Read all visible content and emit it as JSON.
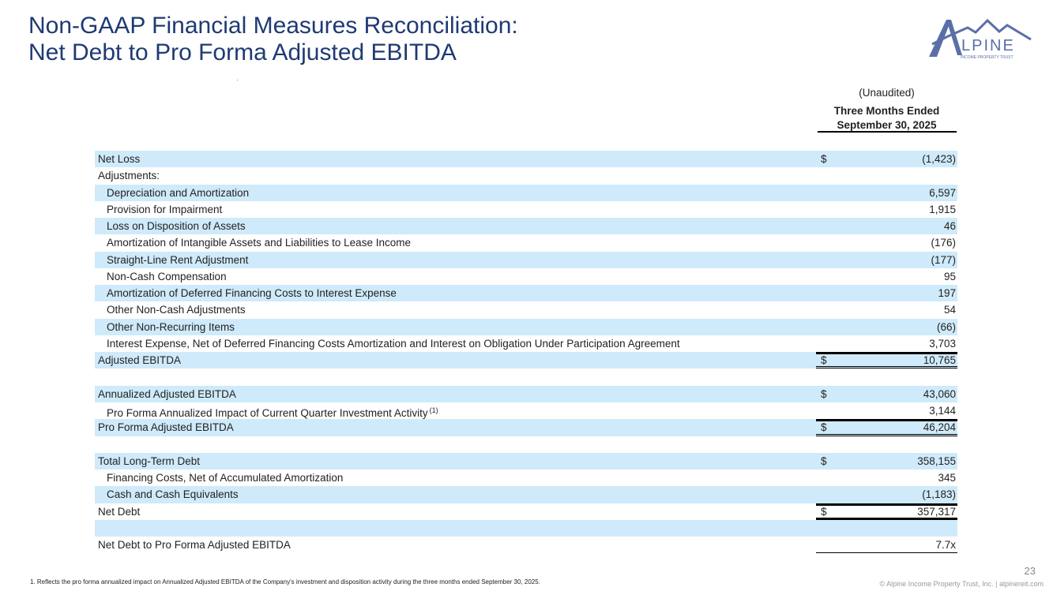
{
  "title": {
    "line1": "Non-GAAP Financial Measures Reconciliation:",
    "line2": "Net Debt to Pro Forma Adjusted EBITDA"
  },
  "logo": {
    "text": "ALPINE",
    "subtext": "INCOME PROPERTY TRUST",
    "color": "#5a6fa8"
  },
  "column_header": {
    "unaudited": "(Unaudited)",
    "line1": "Three Months Ended",
    "line2": "September 30, 2025"
  },
  "colors": {
    "title": "#1f3a73",
    "row_shade": "#cfeafa"
  },
  "rows": [
    {
      "label": "Net Loss",
      "dollar": "$",
      "value": "(1,423)",
      "indent": false,
      "shade": true
    },
    {
      "label": "Adjustments:",
      "value": "",
      "indent": false,
      "shade": false
    },
    {
      "label": "Depreciation and Amortization",
      "value": "6,597",
      "indent": true,
      "shade": true
    },
    {
      "label": "Provision for Impairment",
      "value": "1,915",
      "indent": true,
      "shade": false
    },
    {
      "label": "Loss on Disposition of Assets",
      "value": "46",
      "indent": true,
      "shade": true
    },
    {
      "label": "Amortization of Intangible Assets and Liabilities to Lease Income",
      "value": "(176)",
      "indent": true,
      "shade": false
    },
    {
      "label": "Straight-Line Rent Adjustment",
      "value": "(177)",
      "indent": true,
      "shade": true
    },
    {
      "label": "Non-Cash Compensation",
      "value": "95",
      "indent": true,
      "shade": false
    },
    {
      "label": "Amortization of Deferred Financing Costs to Interest Expense",
      "value": "197",
      "indent": true,
      "shade": true
    },
    {
      "label": "Other Non-Cash Adjustments",
      "value": "54",
      "indent": true,
      "shade": false
    },
    {
      "label": "Other Non-Recurring Items",
      "value": "(66)",
      "indent": true,
      "shade": true
    },
    {
      "label": "Interest Expense, Net of Deferred Financing Costs Amortization and Interest on Obligation Under Participation Agreement",
      "value": "3,703",
      "indent": true,
      "shade": false
    },
    {
      "label": "Adjusted EBITDA",
      "dollar": "$",
      "value": "10,765",
      "indent": false,
      "shade": true,
      "border": "top dbl"
    },
    {
      "label": "",
      "value": "",
      "shade": false
    },
    {
      "label": "Annualized Adjusted EBITDA",
      "dollar": "$",
      "value": "43,060",
      "indent": false,
      "shade": true
    },
    {
      "label": "Pro Forma Annualized Impact of Current Quarter Investment Activity",
      "footnote": "(1)",
      "value": "3,144",
      "indent": true,
      "shade": false
    },
    {
      "label": "Pro Forma Adjusted EBITDA",
      "dollar": "$",
      "value": "46,204",
      "indent": false,
      "shade": true,
      "border": "top dbl"
    },
    {
      "label": "",
      "value": "",
      "shade": false
    },
    {
      "label": "Total Long-Term Debt",
      "dollar": "$",
      "value": "358,155",
      "indent": false,
      "shade": true
    },
    {
      "label": "Financing Costs, Net of Accumulated Amortization",
      "value": "345",
      "indent": true,
      "shade": false
    },
    {
      "label": "Cash and Cash Equivalents",
      "value": "(1,183)",
      "indent": true,
      "shade": true
    },
    {
      "label": "Net Debt",
      "dollar": "$",
      "value": "357,317",
      "indent": false,
      "shade": false,
      "border": "top thick-bot"
    },
    {
      "label": "",
      "value": "",
      "shade": true
    },
    {
      "label": "Net Debt to Pro Forma Adjusted EBITDA",
      "value": "7.7x",
      "indent": false,
      "shade": false,
      "border": "thin-bot"
    }
  ],
  "footnote": "1.    Reflects the pro forma annualized impact on Annualized Adjusted EBITDA of the Company's investment and disposition activity during the three months ended September 30, 2025.",
  "page_number": "23",
  "copyright": "© Alpine Income Property Trust, Inc.  |  alpinereit.com"
}
